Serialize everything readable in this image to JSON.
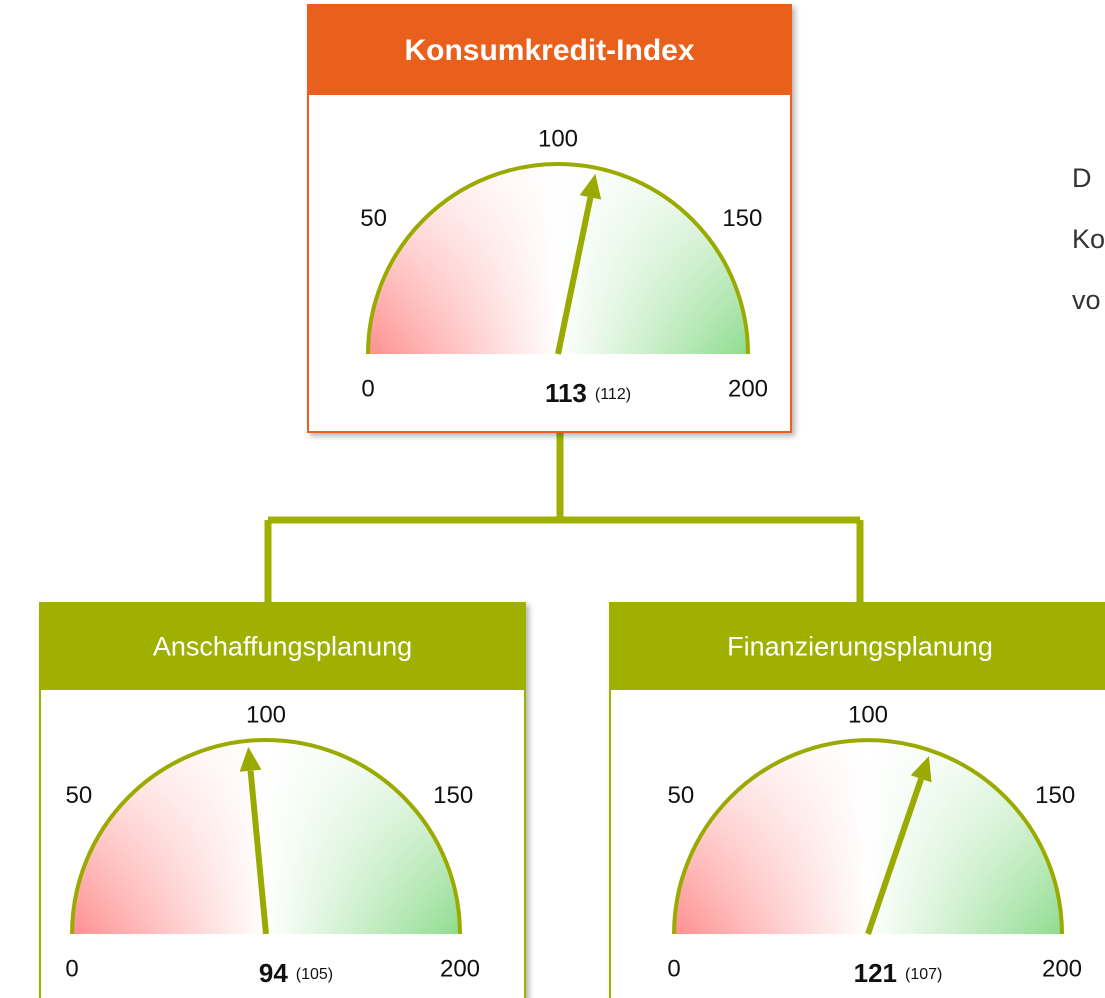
{
  "gauges": [
    {
      "title": "Konsumkredit-Index",
      "value": 113,
      "previous": "(112)",
      "range": [
        0,
        200
      ],
      "ticks": [
        0,
        50,
        100,
        150,
        200
      ]
    },
    {
      "title": "Anschaffungsplanung",
      "value": 94,
      "previous": "(105)",
      "range": [
        0,
        200
      ],
      "ticks": [
        0,
        50,
        100,
        150,
        200
      ]
    },
    {
      "title": "Finanzierungsplanung",
      "value": 121,
      "previous": "(107)",
      "range": [
        0,
        200
      ],
      "ticks": [
        0,
        50,
        100,
        150,
        200
      ]
    }
  ],
  "side_text": [
    "D",
    "Ko",
    "vo"
  ]
}
